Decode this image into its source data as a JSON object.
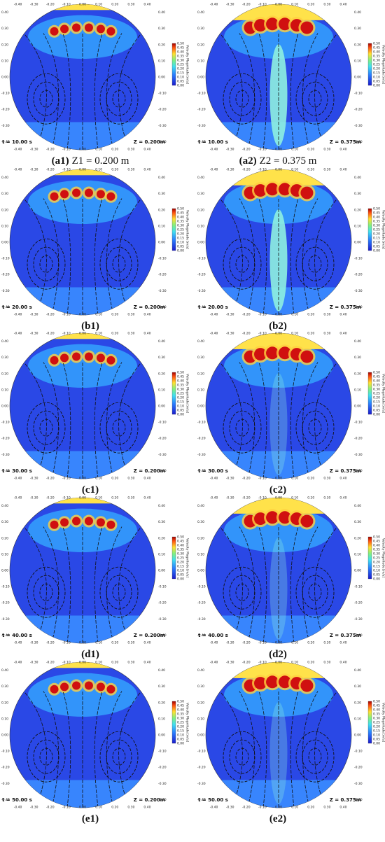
{
  "axis_ticks_x": [
    {
      "value": -0.4,
      "label": "-0.40"
    },
    {
      "value": -0.3,
      "label": "-0.30"
    },
    {
      "value": -0.2,
      "label": "-0.20"
    },
    {
      "value": -0.1,
      "label": "-0.10"
    },
    {
      "value": 0,
      "label": "0.00"
    },
    {
      "value": 0.1,
      "label": "0.10"
    },
    {
      "value": 0.2,
      "label": "0.20"
    },
    {
      "value": 0.3,
      "label": "0.30"
    },
    {
      "value": 0.4,
      "label": "0.40"
    }
  ],
  "axis_ticks_y": [
    {
      "value": 0.4,
      "label": "0.40"
    },
    {
      "value": 0.3,
      "label": "0.30"
    },
    {
      "value": 0.2,
      "label": "0.20"
    },
    {
      "value": 0.1,
      "label": "0.10"
    },
    {
      "value": 0,
      "label": "0.00"
    },
    {
      "value": -0.1,
      "label": "-0.10"
    },
    {
      "value": -0.2,
      "label": "-0.20"
    },
    {
      "value": -0.3,
      "label": "-0.30"
    },
    {
      "value": -0.4,
      "label": "-0.40"
    }
  ],
  "colorbar": {
    "title": "Velocity Magnitude [m/s]",
    "ticks": [
      {
        "value": 0.5,
        "label": "0.50"
      },
      {
        "value": 0.45,
        "label": "0.45"
      },
      {
        "value": 0.4,
        "label": "0.40"
      },
      {
        "value": 0.35,
        "label": "0.35"
      },
      {
        "value": 0.3,
        "label": "0.30"
      },
      {
        "value": 0.25,
        "label": "0.25"
      },
      {
        "value": 0.2,
        "label": "0.20"
      },
      {
        "value": 0.15,
        "label": "0.15"
      },
      {
        "value": 0.1,
        "label": "0.10"
      },
      {
        "value": 0.05,
        "label": "0.05"
      },
      {
        "value": 0,
        "label": "0.00"
      }
    ]
  },
  "panels": [
    {
      "label": "(a1)",
      "description": "Z1 = 0.200 m",
      "time": "t = 10.00 s",
      "z": "Z = 0.200m"
    },
    {
      "label": "(a2)",
      "description": "Z2 = 0.375 m",
      "time": "t = 10.00 s",
      "z": "Z = 0.375m"
    },
    {
      "label": "(b1)",
      "time": "t = 20.00 s",
      "z": "Z = 0.200m"
    },
    {
      "label": "(b2)",
      "time": "t = 20.00 s",
      "z": "Z = 0.375m"
    },
    {
      "label": "(c1)",
      "time": "t = 30.00 s",
      "z": "Z = 0.200m"
    },
    {
      "label": "(c2)",
      "time": "t = 30.00 s",
      "z": "Z = 0.375m"
    },
    {
      "label": "(d1)",
      "time": "t = 40.00 s",
      "z": "Z = 0.200m"
    },
    {
      "label": "(d2)",
      "time": "t = 40.00 s",
      "z": "Z = 0.375m"
    },
    {
      "label": "(e1)",
      "time": "t = 50.00 s",
      "z": "Z = 0.200m"
    },
    {
      "label": "(e2)",
      "time": "t = 50.00 s",
      "z": "Z = 0.375m"
    }
  ]
}
